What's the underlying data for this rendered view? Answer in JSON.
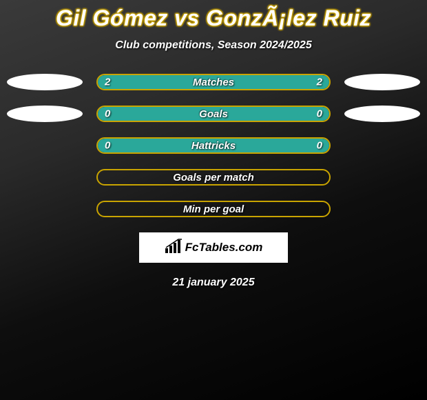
{
  "title": "Gil Gómez vs GonzÃ¡lez Ruiz",
  "subtitle": "Club competitions, Season 2024/2025",
  "date": "21 january 2025",
  "logo_text": "FcTables.com",
  "colors": {
    "accent_yellow": "#c9a400",
    "accent_teal": "#2aa89a",
    "bar_fill_teal": "#2aa89a",
    "white": "#ffffff"
  },
  "rows": [
    {
      "label": "Matches",
      "left_value": "2",
      "right_value": "2",
      "border_color": "#c9a400",
      "fill_color": "#2aa89a",
      "fill_percent": 100,
      "show_left_ellipse": true,
      "show_right_ellipse": true
    },
    {
      "label": "Goals",
      "left_value": "0",
      "right_value": "0",
      "border_color": "#c9a400",
      "fill_color": "#2aa89a",
      "fill_percent": 100,
      "show_left_ellipse": true,
      "show_right_ellipse": true
    },
    {
      "label": "Hattricks",
      "left_value": "0",
      "right_value": "0",
      "border_color": "#c9a400",
      "fill_color": "#2aa89a",
      "fill_percent": 100,
      "show_left_ellipse": false,
      "show_right_ellipse": false
    },
    {
      "label": "Goals per match",
      "left_value": "",
      "right_value": "",
      "border_color": "#c9a400",
      "fill_color": "#2aa89a",
      "fill_percent": 0,
      "show_left_ellipse": false,
      "show_right_ellipse": false
    },
    {
      "label": "Min per goal",
      "left_value": "",
      "right_value": "",
      "border_color": "#c9a400",
      "fill_color": "#2aa89a",
      "fill_percent": 0,
      "show_left_ellipse": false,
      "show_right_ellipse": false
    }
  ]
}
